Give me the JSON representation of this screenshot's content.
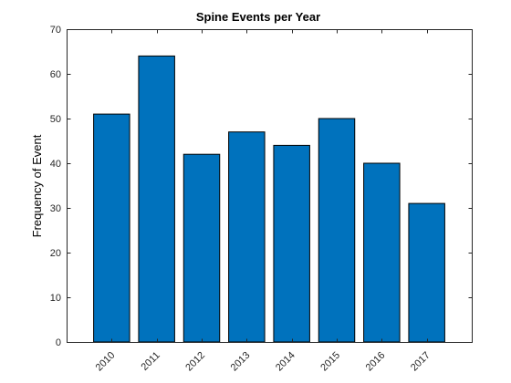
{
  "chart_data": {
    "type": "bar",
    "title": "Spine Events per Year",
    "xlabel": "",
    "ylabel": "Frequency of Event",
    "categories": [
      "2010",
      "2011",
      "2012",
      "2013",
      "2014",
      "2015",
      "2016",
      "2017"
    ],
    "values": [
      51,
      64,
      42,
      47,
      44,
      50,
      40,
      31
    ],
    "ylim": [
      0,
      70
    ],
    "yticks": [
      0,
      10,
      20,
      30,
      40,
      50,
      60,
      70
    ],
    "xtick_rotation_deg": 45,
    "bar_color": "#0072BD",
    "grid": false,
    "legend": "none"
  }
}
